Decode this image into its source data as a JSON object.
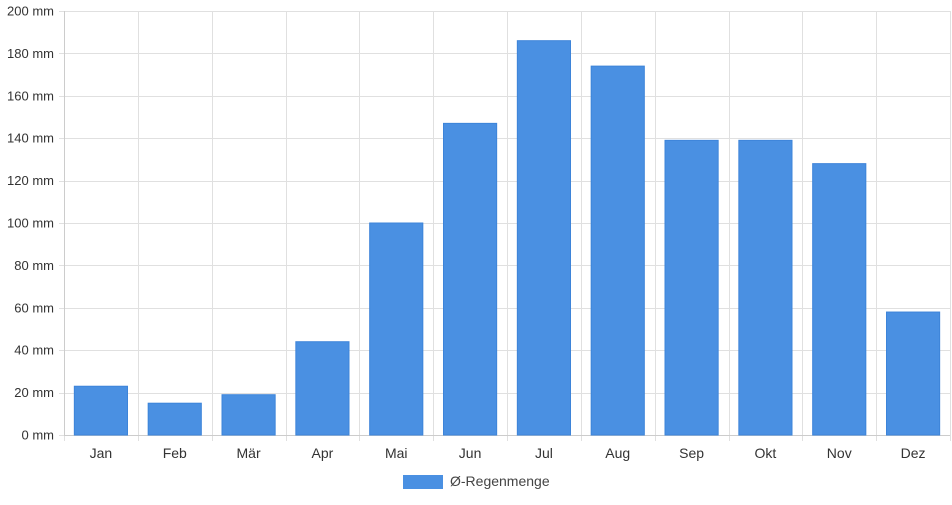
{
  "chart_data": {
    "type": "bar",
    "categories": [
      "Jan",
      "Feb",
      "Mär",
      "Apr",
      "Mai",
      "Jun",
      "Jul",
      "Aug",
      "Sep",
      "Okt",
      "Nov",
      "Dez"
    ],
    "series": [
      {
        "name": "Ø-Regenmenge",
        "values": [
          23,
          15,
          19,
          44,
          100,
          147,
          186,
          174,
          139,
          139,
          128,
          58
        ],
        "color": "#4a90e2"
      }
    ],
    "y_unit": "mm",
    "ylim": [
      0,
      200
    ],
    "yticks": [
      0,
      20,
      40,
      60,
      80,
      100,
      120,
      140,
      160,
      180,
      200
    ],
    "ytick_labels": [
      "0 mm",
      "20 mm",
      "40 mm",
      "60 mm",
      "80 mm",
      "100 mm",
      "120 mm",
      "140 mm",
      "160 mm",
      "180 mm",
      "200 mm"
    ],
    "grid": true,
    "legend_position": "bottom-center"
  }
}
